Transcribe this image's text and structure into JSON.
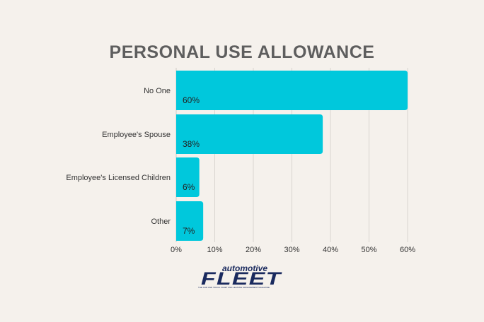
{
  "chart_data": {
    "type": "bar",
    "orientation": "horizontal",
    "title": "PERSONAL USE ALLOWANCE",
    "categories": [
      "No One",
      "Employee's Spouse",
      "Employee's Licensed Children",
      "Other"
    ],
    "values": [
      60,
      38,
      6,
      7
    ],
    "data_labels": [
      "60%",
      "38%",
      "6%",
      "7%"
    ],
    "xlim": [
      0,
      60
    ],
    "x_ticks": [
      0,
      10,
      20,
      30,
      40,
      50,
      60
    ],
    "x_tick_labels": [
      "0%",
      "10%",
      "20%",
      "30%",
      "40%",
      "50%",
      "60%"
    ],
    "grid": "vertical",
    "bar_color": "#00c8dc"
  },
  "logo": {
    "top_word": "automotive",
    "big_word": "FLEET",
    "tagline": "THE CAR AND TRUCK FLEET AND LEASING MANAGEMENT MAGAZINE"
  }
}
